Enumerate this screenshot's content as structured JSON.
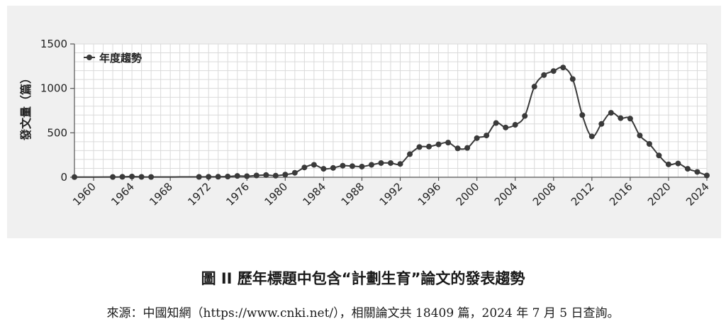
{
  "caption": "圖 II  歷年標題中包含“計劃生育”論文的發表趨勢",
  "source": "來源：中國知網（https://www.cnki.net/），相關論文共 18409 篇，2024 年 7 月 5 日查詢。",
  "colors": {
    "panel": "#f0f0f0",
    "grid": "#dadada",
    "line": "#3a3a3a",
    "axis": "#555555"
  },
  "chart_data": {
    "type": "line",
    "ylabel": "發文量（篇）",
    "legend_label": "年度趨勢",
    "legend_position": "top-left",
    "grid": true,
    "xlim": [
      1958,
      2024
    ],
    "ylim": [
      0,
      1500
    ],
    "xticks": [
      1960,
      1964,
      1968,
      1972,
      1976,
      1980,
      1984,
      1988,
      1992,
      1996,
      2000,
      2004,
      2008,
      2012,
      2016,
      2020,
      2024
    ],
    "yticks": [
      0,
      500,
      1000,
      1500
    ],
    "series": [
      {
        "name": "年度趨勢",
        "points": [
          [
            1958,
            2
          ],
          [
            1962,
            3
          ],
          [
            1963,
            5
          ],
          [
            1964,
            8
          ],
          [
            1965,
            4
          ],
          [
            1966,
            3
          ],
          [
            1971,
            4
          ],
          [
            1972,
            5
          ],
          [
            1973,
            6
          ],
          [
            1974,
            8
          ],
          [
            1975,
            15
          ],
          [
            1976,
            12
          ],
          [
            1977,
            20
          ],
          [
            1978,
            25
          ],
          [
            1979,
            18
          ],
          [
            1980,
            30
          ],
          [
            1981,
            50
          ],
          [
            1982,
            110
          ],
          [
            1983,
            140
          ],
          [
            1984,
            95
          ],
          [
            1985,
            105
          ],
          [
            1986,
            130
          ],
          [
            1987,
            125
          ],
          [
            1988,
            120
          ],
          [
            1989,
            140
          ],
          [
            1990,
            160
          ],
          [
            1991,
            160
          ],
          [
            1992,
            150
          ],
          [
            1993,
            260
          ],
          [
            1994,
            340
          ],
          [
            1995,
            345
          ],
          [
            1996,
            370
          ],
          [
            1997,
            390
          ],
          [
            1998,
            325
          ],
          [
            1999,
            330
          ],
          [
            2000,
            440
          ],
          [
            2001,
            470
          ],
          [
            2002,
            610
          ],
          [
            2003,
            560
          ],
          [
            2004,
            590
          ],
          [
            2005,
            690
          ],
          [
            2006,
            1020
          ],
          [
            2007,
            1150
          ],
          [
            2008,
            1195
          ],
          [
            2009,
            1235
          ],
          [
            2010,
            1105
          ],
          [
            2011,
            700
          ],
          [
            2012,
            460
          ],
          [
            2013,
            600
          ],
          [
            2014,
            725
          ],
          [
            2015,
            665
          ],
          [
            2016,
            660
          ],
          [
            2017,
            470
          ],
          [
            2018,
            375
          ],
          [
            2019,
            245
          ],
          [
            2020,
            145
          ],
          [
            2021,
            155
          ],
          [
            2022,
            95
          ],
          [
            2023,
            60
          ],
          [
            2024,
            20
          ]
        ]
      }
    ]
  }
}
